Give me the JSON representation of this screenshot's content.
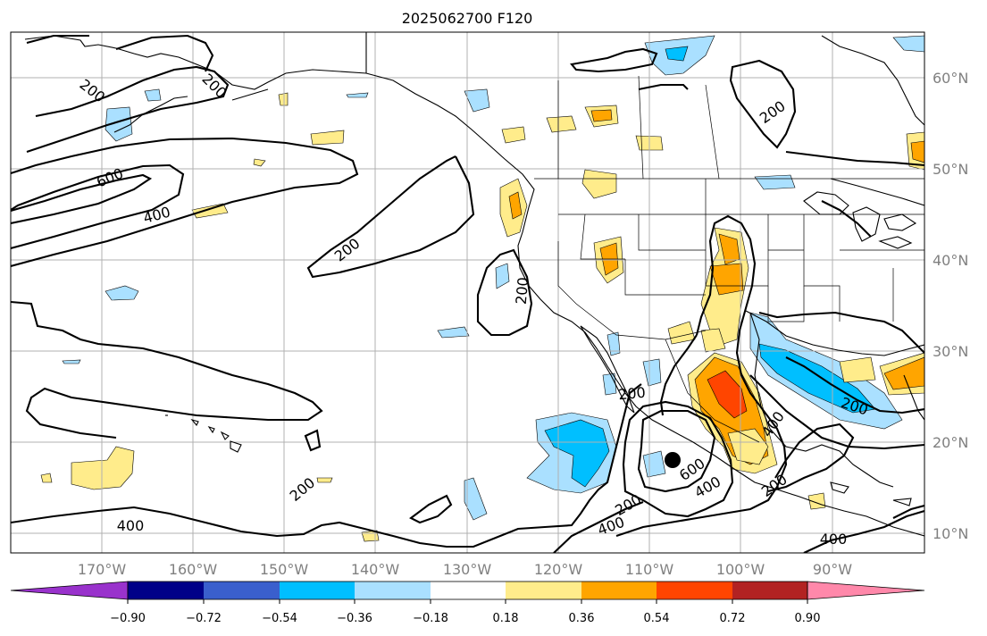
{
  "title": "2025062700 F120",
  "longitude_labels": [
    "170°W",
    "160°W",
    "150°W",
    "140°W",
    "130°W",
    "120°W",
    "110°W",
    "100°W",
    "90°W"
  ],
  "latitude_labels": [
    "60°N",
    "50°N",
    "40°N",
    "30°N",
    "20°N",
    "10°N"
  ],
  "contour_labels": [
    "200",
    "200",
    "600",
    "400",
    "200",
    "200",
    "200",
    "200",
    "200",
    "200",
    "400",
    "600",
    "400",
    "400",
    "200",
    "200",
    "400",
    "200",
    "200",
    "400"
  ],
  "colorbar": {
    "tick_labels": [
      "−0.90",
      "−0.72",
      "−0.54",
      "−0.36",
      "−0.18",
      "0.18",
      "0.36",
      "0.54",
      "0.72",
      "0.90"
    ],
    "colors": [
      "#9932cc",
      "#000088",
      "#3a5fcd",
      "#00bfff",
      "#aae0ff",
      "#ffffff",
      "#ffec8b",
      "#ffa500",
      "#ff4500",
      "#b22222",
      "#ff88aa"
    ]
  },
  "storm_marker": "hurricane-symbol"
}
